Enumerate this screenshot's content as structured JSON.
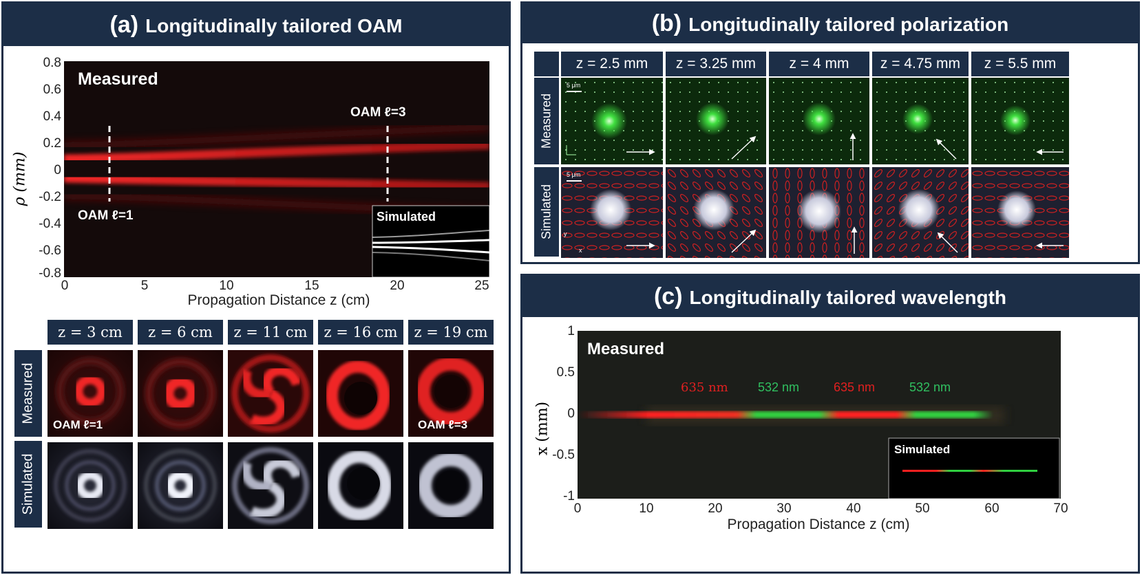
{
  "panel_a": {
    "tag": "(a)",
    "title": "Longitudinally  tailored OAM",
    "heatmap_label": "Measured",
    "inset_label": "Simulated",
    "annot_left": "OAM ℓ=1",
    "annot_right": "OAM ℓ=3",
    "col_labels": [
      "z = 3 cm",
      "z = 6 cm",
      "z = 11 cm",
      "z = 16 cm",
      "z = 19 cm"
    ],
    "row_labels": [
      "Measured",
      "Simulated"
    ],
    "tile_annot_left": "OAM ℓ=1",
    "tile_annot_right": "OAM ℓ=3"
  },
  "panel_b": {
    "tag": "(b)",
    "title": "Longitudinally  tailored polarization",
    "col_labels": [
      "z = 2.5 mm",
      "z = 3.25 mm",
      "z = 4 mm",
      "z = 4.75 mm",
      "z = 5.5 mm"
    ],
    "row_labels": [
      "Measured",
      "Simulated"
    ],
    "scale_label": "5 μm",
    "axis_x": "x",
    "axis_y": "y"
  },
  "panel_c": {
    "tag": "(c)",
    "title": "Longitudinally  tailored wavelength",
    "heatmap_label": "Measured",
    "inset_label": "Simulated",
    "wavelength_labels": [
      "635 nm",
      "532 nm",
      "635 nm",
      "532 nm"
    ]
  },
  "chart_data": [
    {
      "type": "heatmap",
      "title": "Longitudinally  tailored OAM",
      "xlabel": "Propagation Distance z (cm)",
      "ylabel": "ρ (mm)",
      "xlim": [
        0,
        25
      ],
      "ylim": [
        -0.8,
        0.8
      ],
      "x_ticks": [
        "0",
        "5",
        "10",
        "15",
        "20",
        "25"
      ],
      "y_ticks": [
        "0.8",
        "0.6",
        "0.4",
        "0.2",
        "0",
        "-0.2",
        "-0.4",
        "-0.6",
        "-0.8"
      ],
      "markers": [
        {
          "x": 3,
          "label": "OAM ℓ=1"
        },
        {
          "x": 19,
          "label": "OAM ℓ=3"
        }
      ],
      "colors": {
        "beam": "#e02020",
        "background": "#100808"
      }
    },
    {
      "type": "heatmap",
      "title": "Longitudinally  tailored wavelength",
      "xlabel": "Propagation Distance z (cm)",
      "ylabel": "x (mm)",
      "xlim": [
        0,
        70
      ],
      "ylim": [
        -1,
        1
      ],
      "x_ticks": [
        "0",
        "10",
        "20",
        "30",
        "40",
        "50",
        "60",
        "70"
      ],
      "y_ticks": [
        "1",
        "0.5",
        "0",
        "-0.5",
        "-1"
      ],
      "segments": [
        {
          "label": "635 nm",
          "x_start": 15,
          "x_end": 26,
          "color": "#ff2020"
        },
        {
          "label": "532 nm",
          "x_start": 26,
          "x_end": 37,
          "color": "#30d040"
        },
        {
          "label": "635 nm",
          "x_start": 37,
          "x_end": 48,
          "color": "#ff2020"
        },
        {
          "label": "532 nm",
          "x_start": 48,
          "x_end": 60,
          "color": "#30d040"
        }
      ]
    }
  ]
}
